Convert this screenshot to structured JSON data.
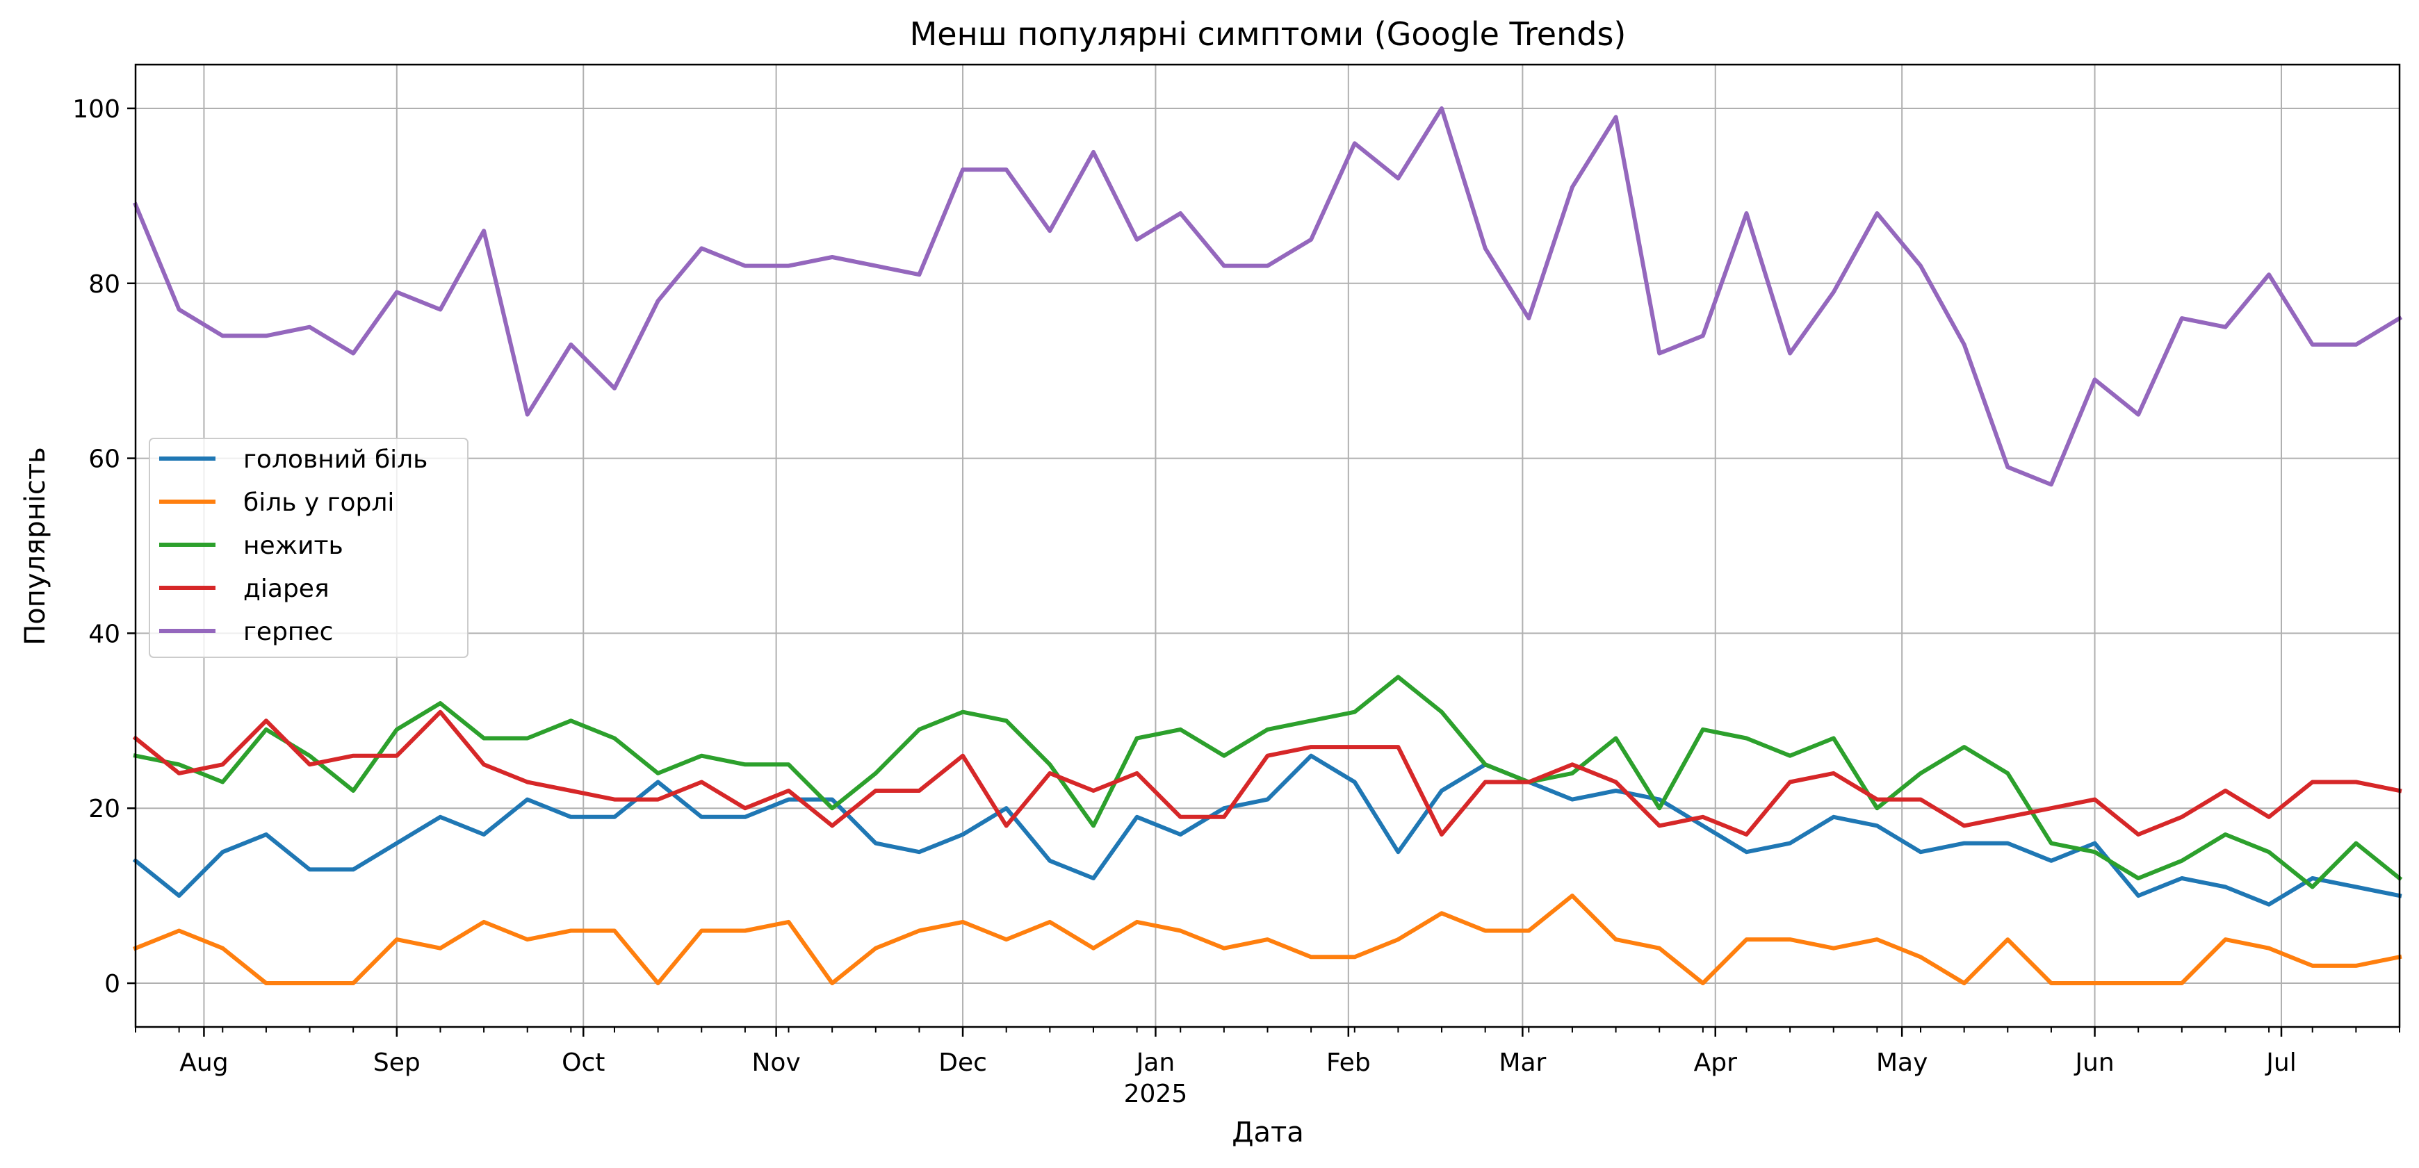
{
  "chart_data": {
    "type": "line",
    "title": "Менш популярні симптоми (Google Trends)",
    "xlabel": "Дата",
    "ylabel": "Популярність",
    "x_start": "2024-07-21",
    "x_step_days": 7,
    "x_end": "2025-07-20",
    "xlim": [
      "2024-07-21",
      "2025-07-20"
    ],
    "ylim": [
      -5,
      105
    ],
    "yticks": [
      0,
      20,
      40,
      60,
      80,
      100
    ],
    "xticks": [
      {
        "date": "2024-08-01",
        "label": "Aug"
      },
      {
        "date": "2024-09-01",
        "label": "Sep"
      },
      {
        "date": "2024-10-01",
        "label": "Oct"
      },
      {
        "date": "2024-11-01",
        "label": "Nov"
      },
      {
        "date": "2024-12-01",
        "label": "Dec"
      },
      {
        "date": "2025-01-01",
        "label": "Jan",
        "sublabel": "2025"
      },
      {
        "date": "2025-02-01",
        "label": "Feb"
      },
      {
        "date": "2025-03-01",
        "label": "Mar"
      },
      {
        "date": "2025-04-01",
        "label": "Apr"
      },
      {
        "date": "2025-05-01",
        "label": "May"
      },
      {
        "date": "2025-06-01",
        "label": "Jun"
      },
      {
        "date": "2025-07-01",
        "label": "Jul"
      }
    ],
    "grid": true,
    "legend_position": "center-left",
    "series": [
      {
        "name": "головний біль",
        "color": "#1f77b4",
        "values": [
          14,
          10,
          15,
          17,
          13,
          13,
          16,
          19,
          17,
          21,
          19,
          19,
          23,
          19,
          19,
          21,
          21,
          16,
          15,
          17,
          20,
          14,
          12,
          19,
          17,
          20,
          21,
          26,
          23,
          15,
          22,
          25,
          23,
          21,
          22,
          21,
          18,
          15,
          16,
          19,
          18,
          15,
          16,
          16,
          14,
          16,
          10,
          12,
          11,
          9,
          12,
          11,
          10
        ]
      },
      {
        "name": "біль у горлі",
        "color": "#ff7f0e",
        "values": [
          4,
          6,
          4,
          0,
          0,
          0,
          5,
          4,
          7,
          5,
          6,
          6,
          0,
          6,
          6,
          7,
          0,
          4,
          6,
          7,
          5,
          7,
          4,
          7,
          6,
          4,
          5,
          3,
          3,
          5,
          8,
          6,
          6,
          10,
          5,
          4,
          0,
          5,
          5,
          4,
          5,
          3,
          0,
          5,
          0,
          0,
          0,
          0,
          5,
          4,
          2,
          2,
          3
        ]
      },
      {
        "name": "нежить",
        "color": "#2ca02c",
        "values": [
          26,
          25,
          23,
          29,
          26,
          22,
          29,
          32,
          28,
          28,
          30,
          28,
          24,
          26,
          25,
          25,
          20,
          24,
          29,
          31,
          30,
          25,
          18,
          28,
          29,
          26,
          29,
          30,
          31,
          35,
          31,
          25,
          23,
          24,
          28,
          20,
          29,
          28,
          26,
          28,
          20,
          24,
          27,
          24,
          16,
          15,
          12,
          14,
          17,
          15,
          11,
          16,
          12
        ]
      },
      {
        "name": "діарея",
        "color": "#d62728",
        "values": [
          28,
          24,
          25,
          30,
          25,
          26,
          26,
          31,
          25,
          23,
          22,
          21,
          21,
          23,
          20,
          22,
          18,
          22,
          22,
          26,
          18,
          24,
          22,
          24,
          19,
          19,
          26,
          27,
          27,
          27,
          17,
          23,
          23,
          25,
          23,
          18,
          19,
          17,
          23,
          24,
          21,
          21,
          18,
          19,
          20,
          21,
          17,
          19,
          22,
          19,
          23,
          23,
          22
        ]
      },
      {
        "name": "герпес",
        "color": "#9467bd",
        "values": [
          89,
          77,
          74,
          74,
          75,
          72,
          79,
          77,
          86,
          65,
          73,
          68,
          78,
          84,
          82,
          82,
          83,
          82,
          81,
          93,
          93,
          86,
          95,
          85,
          88,
          82,
          82,
          85,
          96,
          92,
          100,
          84,
          76,
          91,
          99,
          72,
          74,
          88,
          72,
          79,
          88,
          82,
          73,
          59,
          57,
          69,
          65,
          76,
          75,
          81,
          73,
          73,
          76
        ]
      }
    ]
  }
}
